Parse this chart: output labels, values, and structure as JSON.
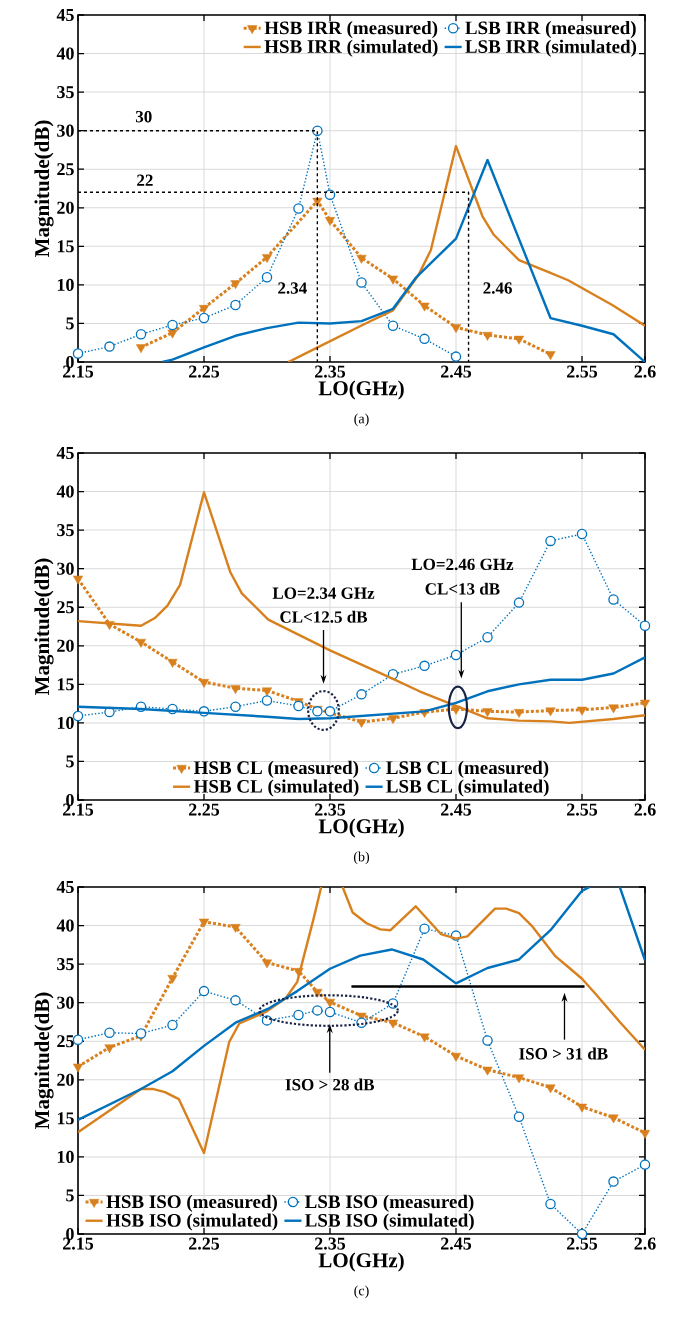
{
  "chart_data": [
    {
      "type": "line",
      "xlabel": "LO(GHz)",
      "ylabel": "Magnitude(dB)",
      "xlim": [
        2.15,
        2.6
      ],
      "ylim": [
        0,
        45
      ],
      "xticks": [
        2.15,
        2.25,
        2.35,
        2.45,
        2.55,
        2.6
      ],
      "yticks": [
        0,
        5,
        10,
        15,
        20,
        25,
        30,
        35,
        40,
        45
      ],
      "grid": true,
      "legend": "top right",
      "series": [
        {
          "name": "HSB IRR (measured)",
          "color": "#d9801e",
          "line_style": "dotted",
          "marker": "triangle",
          "x": [
            2.2,
            2.225,
            2.25,
            2.275,
            2.3,
            2.34,
            2.35,
            2.375,
            2.4,
            2.425,
            2.45,
            2.475,
            2.5,
            2.525
          ],
          "values": [
            1.9,
            3.8,
            7.0,
            10.2,
            13.6,
            20.9,
            18.4,
            13.5,
            10.8,
            7.3,
            4.5,
            3.5,
            3.0,
            1.0
          ]
        },
        {
          "name": "LSB IRR (measured)",
          "color": "#0072bd",
          "line_style": "dotted",
          "marker": "circle",
          "x": [
            2.15,
            2.175,
            2.2,
            2.225,
            2.25,
            2.275,
            2.3,
            2.325,
            2.34,
            2.35,
            2.375,
            2.4,
            2.425,
            2.45
          ],
          "values": [
            1.1,
            2.0,
            3.6,
            4.8,
            5.7,
            7.4,
            11.0,
            19.9,
            30.0,
            21.7,
            10.3,
            4.7,
            3.0,
            0.7
          ]
        },
        {
          "name": "HSB IRR (simulated)",
          "color": "#d9801e",
          "line_style": "solid",
          "marker": "none",
          "x": [
            2.317,
            2.339,
            2.377,
            2.4,
            2.42,
            2.43,
            2.45,
            2.471,
            2.48,
            2.5,
            2.523,
            2.539,
            2.574,
            2.6
          ],
          "values": [
            0,
            1.8,
            4.9,
            6.7,
            11.2,
            14.5,
            28.0,
            18.9,
            16.5,
            13.2,
            11.7,
            10.6,
            7.4,
            4.7
          ]
        },
        {
          "name": "LSB IRR (simulated)",
          "color": "#0072bd",
          "line_style": "solid",
          "marker": "none",
          "x": [
            2.217,
            2.225,
            2.25,
            2.275,
            2.3,
            2.325,
            2.35,
            2.375,
            2.4,
            2.418,
            2.45,
            2.475,
            2.525,
            2.55,
            2.575,
            2.6
          ],
          "values": [
            0,
            0.3,
            1.9,
            3.4,
            4.4,
            5.1,
            5.0,
            5.3,
            6.9,
            10.9,
            16.0,
            26.2,
            5.7,
            4.7,
            3.6,
            0
          ]
        },
        {
          "color": "#000000",
          "line_style": "dashed",
          "marker": "none",
          "x": [
            2.15,
            2.34,
            2.34
          ],
          "values": [
            30,
            30,
            0
          ]
        },
        {
          "color": "#000000",
          "line_style": "dashed",
          "marker": "none",
          "x": [
            2.15,
            2.46,
            2.46
          ],
          "values": [
            22,
            22,
            0
          ]
        }
      ],
      "annotations": [
        "30",
        "22",
        "2.34",
        "2.46",
        "(a)"
      ]
    },
    {
      "type": "line",
      "xlabel": "LO(GHz)",
      "ylabel": "Magnitude(dB)",
      "xlim": [
        2.15,
        2.6
      ],
      "ylim": [
        0,
        45
      ],
      "xticks": [
        2.15,
        2.25,
        2.35,
        2.45,
        2.55,
        2.6
      ],
      "yticks": [
        0,
        5,
        10,
        15,
        20,
        25,
        30,
        35,
        40,
        45
      ],
      "grid": true,
      "legend": "bottom",
      "series": [
        {
          "name": "HSB CL (measured)",
          "color": "#d9801e",
          "line_style": "dotted",
          "marker": "triangle",
          "x": [
            2.15,
            2.175,
            2.2,
            2.225,
            2.25,
            2.275,
            2.3,
            2.325,
            2.34,
            2.375,
            2.4,
            2.425,
            2.45,
            2.475,
            2.5,
            2.525,
            2.55,
            2.575,
            2.6
          ],
          "values": [
            28.7,
            22.8,
            20.5,
            17.9,
            15.3,
            14.5,
            14.2,
            12.8,
            11.8,
            10.1,
            10.6,
            11.4,
            11.8,
            11.5,
            11.4,
            11.6,
            11.7,
            12.0,
            12.6
          ]
        },
        {
          "name": "LSB CL (measured)",
          "color": "#0072bd",
          "line_style": "dotted",
          "marker": "circle",
          "x": [
            2.15,
            2.175,
            2.2,
            2.225,
            2.25,
            2.275,
            2.3,
            2.325,
            2.34,
            2.35,
            2.375,
            2.4,
            2.425,
            2.45,
            2.475,
            2.5,
            2.525,
            2.55,
            2.575,
            2.6
          ],
          "values": [
            10.9,
            11.4,
            12.1,
            11.8,
            11.5,
            12.1,
            12.9,
            12.2,
            11.5,
            11.5,
            13.7,
            16.3,
            17.4,
            18.8,
            21.1,
            25.6,
            33.6,
            34.5,
            26.0,
            22.6
          ]
        },
        {
          "name": "HSB CL (simulated)",
          "color": "#d9801e",
          "line_style": "solid",
          "marker": "none",
          "x": [
            2.15,
            2.2,
            2.211,
            2.221,
            2.231,
            2.25,
            2.271,
            2.28,
            2.301,
            2.35,
            2.4,
            2.421,
            2.45,
            2.475,
            2.5,
            2.525,
            2.54,
            2.575,
            2.6
          ],
          "values": [
            23.2,
            22.6,
            23.6,
            25.2,
            27.9,
            39.9,
            29.5,
            26.8,
            23.4,
            19.4,
            15.7,
            14.1,
            12.2,
            10.6,
            10.3,
            10.2,
            10.0,
            10.5,
            11.0
          ]
        },
        {
          "name": "LSB CL (simulated)",
          "color": "#0072bd",
          "line_style": "solid",
          "marker": "none",
          "x": [
            2.15,
            2.2,
            2.25,
            2.3,
            2.325,
            2.35,
            2.375,
            2.4,
            2.425,
            2.45,
            2.475,
            2.5,
            2.525,
            2.55,
            2.575,
            2.6
          ],
          "values": [
            12.1,
            11.8,
            11.3,
            10.8,
            10.5,
            10.6,
            10.9,
            11.2,
            11.5,
            12.6,
            14.1,
            15.0,
            15.6,
            15.6,
            16.4,
            18.5
          ]
        }
      ],
      "annotations": [
        "LO=2.34 GHz",
        "CL<12.5 dB",
        "LO=2.46 GHz",
        "CL<13 dB",
        "(b)"
      ]
    },
    {
      "type": "line",
      "xlabel": "LO(GHz)",
      "ylabel": "Magnitude(dB)",
      "xlim": [
        2.15,
        2.6
      ],
      "ylim": [
        0,
        45
      ],
      "xticks": [
        2.15,
        2.25,
        2.35,
        2.45,
        2.55,
        2.6
      ],
      "yticks": [
        0,
        5,
        10,
        15,
        20,
        25,
        30,
        35,
        40,
        45
      ],
      "grid": true,
      "legend": "bottom left",
      "series": [
        {
          "name": "HSB ISO (measured)",
          "color": "#d9801e",
          "line_style": "dotted",
          "marker": "triangle",
          "x": [
            2.15,
            2.175,
            2.2,
            2.225,
            2.25,
            2.275,
            2.3,
            2.325,
            2.34,
            2.35,
            2.375,
            2.4,
            2.425,
            2.45,
            2.475,
            2.5,
            2.525,
            2.55,
            2.575,
            2.6
          ],
          "values": [
            21.7,
            24.2,
            25.7,
            33.2,
            40.5,
            39.8,
            35.2,
            34.1,
            31.4,
            30.1,
            28.3,
            27.4,
            25.6,
            23.1,
            21.3,
            20.3,
            19.0,
            16.5,
            15.1,
            13.1
          ]
        },
        {
          "name": "LSB ISO (measured)",
          "color": "#0072bd",
          "line_style": "dotted",
          "marker": "circle",
          "x": [
            2.15,
            2.175,
            2.2,
            2.225,
            2.25,
            2.275,
            2.3,
            2.325,
            2.34,
            2.35,
            2.375,
            2.4,
            2.425,
            2.45,
            2.475,
            2.5,
            2.525,
            2.55,
            2.575,
            2.6
          ],
          "values": [
            25.2,
            26.1,
            26.0,
            27.1,
            31.5,
            30.3,
            27.7,
            28.4,
            29.0,
            28.8,
            27.4,
            29.9,
            39.6,
            38.7,
            25.1,
            15.2,
            3.9,
            0,
            6.8,
            9.0
          ]
        },
        {
          "name": "HSB ISO (simulated)",
          "color": "#d9801e",
          "line_style": "solid",
          "marker": "none",
          "x": [
            2.15,
            2.2,
            2.21,
            2.219,
            2.23,
            2.25,
            2.27,
            2.278,
            2.299,
            2.315,
            2.324,
            2.337,
            2.343,
            2.352,
            2.36,
            2.368,
            2.379,
            2.39,
            2.398,
            2.418,
            2.438,
            2.45,
            2.459,
            2.481,
            2.49,
            2.5,
            2.51,
            2.529,
            2.54,
            2.55,
            2.561,
            2.58,
            2.6
          ],
          "values": [
            13.2,
            18.8,
            18.8,
            18.4,
            17.5,
            10.5,
            24.9,
            27.3,
            28.8,
            30.6,
            32.7,
            40.9,
            45,
            null,
            45,
            41.7,
            40.3,
            39.5,
            39.4,
            42.5,
            38.9,
            38.3,
            38.6,
            42.2,
            42.2,
            41.6,
            40.0,
            36.0,
            34.5,
            33.1,
            31.1,
            27.5,
            23.9
          ]
        },
        {
          "name": "LSB ISO (simulated)",
          "color": "#0072bd",
          "line_style": "solid",
          "marker": "none",
          "x": [
            2.15,
            2.2,
            2.225,
            2.25,
            2.275,
            2.302,
            2.324,
            2.35,
            2.374,
            2.399,
            2.424,
            2.45,
            2.475,
            2.5,
            2.525,
            2.55,
            2.556,
            2.568,
            2.58,
            2.6
          ],
          "values": [
            14.8,
            18.8,
            21.1,
            24.4,
            27.4,
            29.3,
            31.5,
            34.4,
            36.1,
            36.9,
            35.6,
            32.5,
            34.5,
            35.6,
            39.4,
            44.5,
            45,
            null,
            45,
            35.5
          ]
        },
        {
          "color": "#000000",
          "line_style": "solid",
          "marker": "none",
          "x": [
            2.367,
            2.552
          ],
          "values": [
            32.1,
            32.1
          ]
        }
      ],
      "annotations": [
        "ISO > 28 dB",
        "ISO > 31 dB",
        "(c)"
      ]
    }
  ]
}
